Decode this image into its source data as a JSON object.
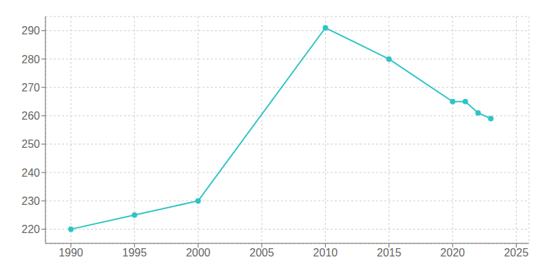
{
  "chart_data": {
    "type": "line",
    "x": [
      1990,
      1995,
      2000,
      2010,
      2015,
      2020,
      2021,
      2022,
      2023
    ],
    "values": [
      220,
      225,
      230,
      291,
      280,
      265,
      265,
      261,
      259
    ],
    "color": "#2EC4C4",
    "marker": "circle",
    "xlim": [
      1988,
      2026
    ],
    "ylim": [
      215,
      295
    ],
    "xticks": [
      1990,
      1995,
      2000,
      2005,
      2010,
      2015,
      2020,
      2025
    ],
    "yticks": [
      220,
      230,
      240,
      250,
      260,
      270,
      280,
      290
    ],
    "grid": true
  }
}
